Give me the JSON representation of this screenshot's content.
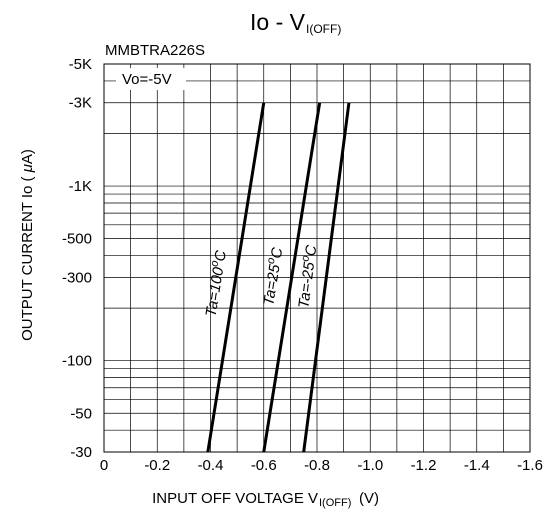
{
  "chart_data": {
    "type": "line",
    "title_main": "Io - V",
    "title_sub": "I(OFF)",
    "device_label": "MMBTRA226S",
    "condition_label": "Vo=-5V",
    "xlabel_main": "INPUT OFF VOLTAGE V",
    "xlabel_sub": "I(OFF)",
    "xlabel_unit": " (V)",
    "ylabel_prefix": "OUTPUT CURRENT Io ( ",
    "ylabel_mu": "μ",
    "ylabel_suffix": "A)",
    "x_scale": "linear",
    "y_scale": "log",
    "xlim": [
      0,
      -1.6
    ],
    "ylim": [
      -30,
      -5000
    ],
    "x_ticks": [
      {
        "value": 0,
        "label": "0"
      },
      {
        "value": -0.2,
        "label": "-0.2"
      },
      {
        "value": -0.4,
        "label": "-0.4"
      },
      {
        "value": -0.6,
        "label": "-0.6"
      },
      {
        "value": -0.8,
        "label": "-0.8"
      },
      {
        "value": -1.0,
        "label": "-1.0"
      },
      {
        "value": -1.2,
        "label": "-1.2"
      },
      {
        "value": -1.4,
        "label": "-1.4"
      },
      {
        "value": -1.6,
        "label": "-1.6"
      }
    ],
    "y_ticks": [
      {
        "value": -30,
        "label": "-30"
      },
      {
        "value": -50,
        "label": "-50"
      },
      {
        "value": -100,
        "label": "-100"
      },
      {
        "value": -300,
        "label": "-300"
      },
      {
        "value": -500,
        "label": "-500"
      },
      {
        "value": -1000,
        "label": "-1K"
      },
      {
        "value": -3000,
        "label": "-3K"
      },
      {
        "value": -5000,
        "label": "-5K"
      }
    ],
    "grid": true,
    "series": [
      {
        "name": "Ta=100°C",
        "label_main": "Ta=100",
        "label_sup": "o",
        "label_end": "C",
        "x": [
          -0.39,
          -0.6
        ],
        "y": [
          -30,
          -3000
        ]
      },
      {
        "name": "Ta=25°C",
        "label_main": "Ta=25",
        "label_sup": "o",
        "label_end": "C",
        "x": [
          -0.6,
          -0.81
        ],
        "y": [
          -30,
          -3000
        ]
      },
      {
        "name": "Ta=-25°C",
        "label_main": "Ta=-25",
        "label_sup": "o",
        "label_end": "C",
        "x": [
          -0.75,
          -0.92
        ],
        "y": [
          -30,
          -3000
        ]
      }
    ]
  }
}
